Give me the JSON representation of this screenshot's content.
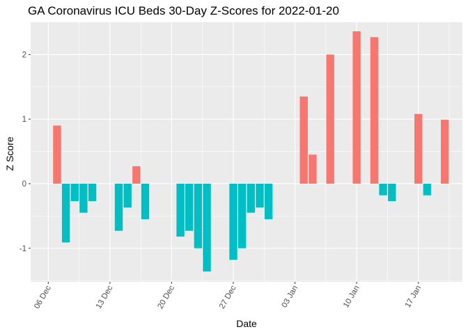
{
  "chart_data": {
    "type": "bar",
    "title": "GA Coronavirus ICU Beds 30-Day Z-Scores for 2022-01-20",
    "xlabel": "Date",
    "ylabel": "Z Score",
    "ylim": [
      -1.52,
      2.5
    ],
    "y_ticks": [
      -1,
      0,
      1,
      2
    ],
    "y_tick_labels": [
      "-1",
      "0",
      "1",
      "2"
    ],
    "x_ticks": [
      "2021-12-06",
      "2021-12-13",
      "2021-12-20",
      "2021-12-27",
      "2022-01-03",
      "2022-01-10",
      "2022-01-17"
    ],
    "x_tick_labels": [
      "06 Dec",
      "13 Dec",
      "20 Dec",
      "27 Dec",
      "03 Jan",
      "10 Jan",
      "17 Jan"
    ],
    "x_range": [
      "2021-12-04",
      "2022-01-22"
    ],
    "grid": true,
    "legend": "none",
    "colors": {
      "positive": "#F8766D",
      "negative": "#00BFC4",
      "panel": "#EBEBEB",
      "grid": "#FFFFFF"
    },
    "series": [
      {
        "name": "Z Score",
        "points": [
          {
            "date": "2021-12-07",
            "value": 0.9
          },
          {
            "date": "2021-12-08",
            "value": -0.91
          },
          {
            "date": "2021-12-09",
            "value": -0.27
          },
          {
            "date": "2021-12-10",
            "value": -0.45
          },
          {
            "date": "2021-12-11",
            "value": -0.27
          },
          {
            "date": "2021-12-14",
            "value": -0.73
          },
          {
            "date": "2021-12-15",
            "value": -0.37
          },
          {
            "date": "2021-12-16",
            "value": 0.27
          },
          {
            "date": "2021-12-17",
            "value": -0.55
          },
          {
            "date": "2021-12-21",
            "value": -0.82
          },
          {
            "date": "2021-12-22",
            "value": -0.73
          },
          {
            "date": "2021-12-23",
            "value": -1.0
          },
          {
            "date": "2021-12-24",
            "value": -1.36
          },
          {
            "date": "2021-12-27",
            "value": -1.18
          },
          {
            "date": "2021-12-28",
            "value": -1.0
          },
          {
            "date": "2021-12-29",
            "value": -0.45
          },
          {
            "date": "2021-12-30",
            "value": -0.37
          },
          {
            "date": "2021-12-31",
            "value": -0.55
          },
          {
            "date": "2022-01-04",
            "value": 1.35
          },
          {
            "date": "2022-01-05",
            "value": 0.45
          },
          {
            "date": "2022-01-07",
            "value": 2.0
          },
          {
            "date": "2022-01-10",
            "value": 2.36
          },
          {
            "date": "2022-01-12",
            "value": 2.27
          },
          {
            "date": "2022-01-13",
            "value": -0.18
          },
          {
            "date": "2022-01-14",
            "value": -0.27
          },
          {
            "date": "2022-01-17",
            "value": 1.08
          },
          {
            "date": "2022-01-18",
            "value": -0.18
          },
          {
            "date": "2022-01-20",
            "value": 0.99
          }
        ]
      }
    ]
  }
}
